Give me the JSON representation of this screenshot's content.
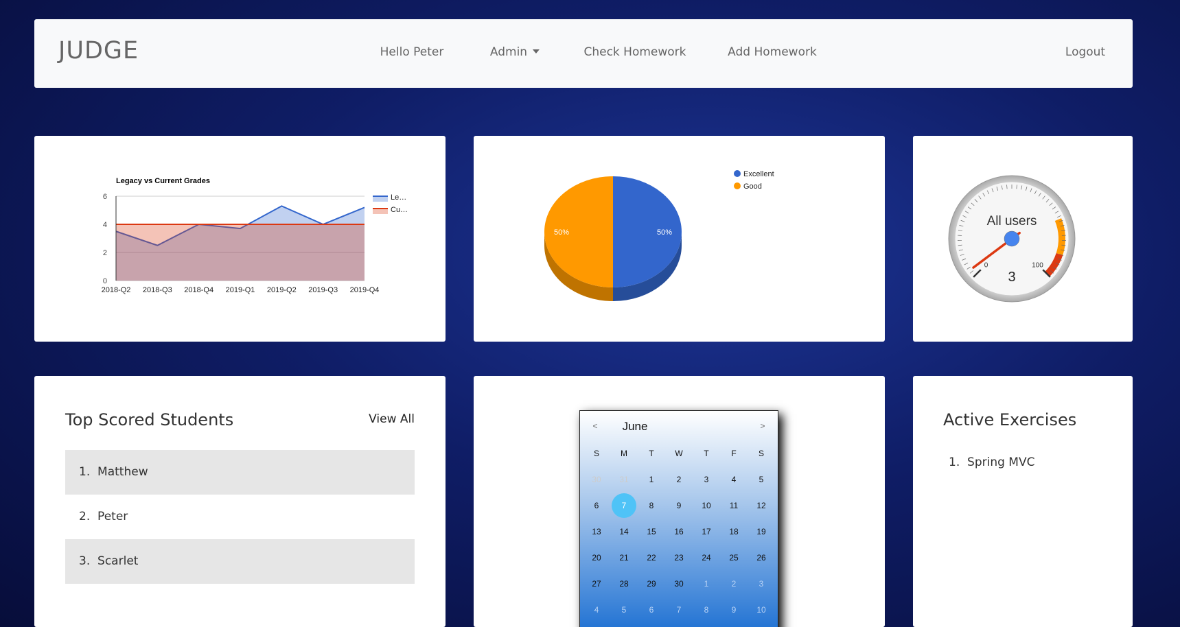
{
  "navbar": {
    "brand": "JUDGE",
    "links": [
      "Hello Peter",
      "Admin",
      "Check Homework",
      "Add Homework"
    ],
    "logout": "Logout"
  },
  "chart_data": [
    {
      "type": "area",
      "title": "Legacy vs Current Grades",
      "categories": [
        "2018-Q2",
        "2018-Q3",
        "2018-Q4",
        "2019-Q1",
        "2019-Q2",
        "2019-Q3",
        "2019-Q4"
      ],
      "series": [
        {
          "name": "Le…",
          "color": "#3366cc",
          "values": [
            3.5,
            2.5,
            4,
            3.7,
            5.3,
            4,
            5.2
          ]
        },
        {
          "name": "Cu…",
          "color": "#dc3912",
          "values": [
            4,
            4,
            4,
            4,
            4,
            4,
            4
          ]
        }
      ],
      "ylim": [
        0,
        6
      ],
      "yticks": [
        0,
        2,
        4,
        6
      ],
      "grid": true,
      "legend": "right"
    },
    {
      "type": "pie",
      "categories": [
        "Excellent",
        "Good"
      ],
      "values": [
        50,
        50
      ],
      "value_labels": [
        "50%",
        "50%"
      ],
      "colors": [
        "#3366cc",
        "#ff9900"
      ],
      "legend": "top-right",
      "is3D": true
    },
    {
      "type": "gauge",
      "label": "All users",
      "values": [
        3
      ],
      "ylim": [
        0,
        100
      ],
      "yticks": [
        0,
        100
      ],
      "bands": [
        {
          "from": 75,
          "to": 90,
          "color": "#ff9900"
        },
        {
          "from": 90,
          "to": 100,
          "color": "#dc3912"
        }
      ]
    }
  ],
  "top_students": {
    "title": "Top Scored Students",
    "link": "View All",
    "items": [
      "Matthew",
      "Peter",
      "Scarlet"
    ]
  },
  "calendar": {
    "month": "June",
    "prev": "<",
    "next": ">",
    "weekdays": [
      "S",
      "M",
      "T",
      "W",
      "T",
      "F",
      "S"
    ],
    "weeks": [
      [
        30,
        31,
        1,
        2,
        3,
        4,
        5
      ],
      [
        6,
        7,
        8,
        9,
        10,
        11,
        12
      ],
      [
        13,
        14,
        15,
        16,
        17,
        18,
        19
      ],
      [
        20,
        21,
        22,
        23,
        24,
        25,
        26
      ],
      [
        27,
        28,
        29,
        30,
        1,
        2,
        3
      ],
      [
        4,
        5,
        6,
        7,
        8,
        9,
        10
      ]
    ],
    "selected": 7
  },
  "active_exercises": {
    "title": "Active Exercises",
    "items": [
      "Spring MVC"
    ]
  }
}
